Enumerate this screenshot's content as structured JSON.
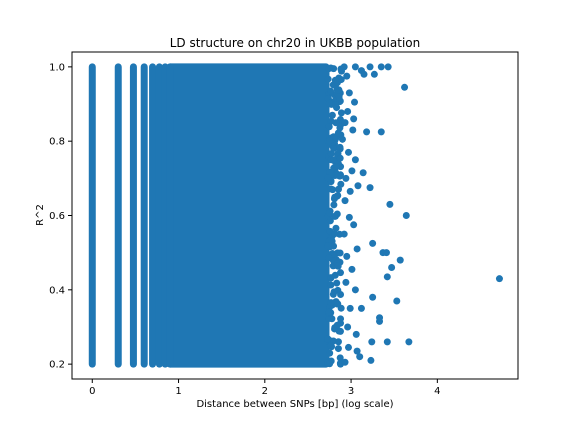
{
  "chart_data": {
    "type": "scatter",
    "title": "LD structure on chr20 in UKBB population",
    "xlabel": "Distance between SNPs [bp] (log scale)",
    "ylabel": "R^2",
    "xlim": [
      -0.235,
      4.935
    ],
    "ylim": [
      0.16,
      1.04
    ],
    "xticks": [
      0,
      1,
      2,
      3,
      4
    ],
    "yticks": [
      0.2,
      0.4,
      0.6,
      0.8,
      1.0
    ],
    "xtick_labels": [
      "0",
      "1",
      "2",
      "3",
      "4"
    ],
    "ytick_labels": [
      "0.2",
      "0.4",
      "0.6",
      "0.8",
      "1.0"
    ],
    "grid": false,
    "marker_color": "#1f77b4",
    "dense_region": {
      "x_range": [
        0.0,
        2.75
      ],
      "y_range": [
        0.2,
        1.0
      ],
      "description": "Solid mass of overlapping points; discrete log10 columns at log10(1..8)"
    },
    "columns_x": [
      0,
      0.301,
      0.477,
      0.602,
      0.699,
      0.778,
      0.845,
      0.903
    ],
    "points": [
      {
        "x": 2.92,
        "y": 1.0
      },
      {
        "x": 3.05,
        "y": 1.0
      },
      {
        "x": 3.12,
        "y": 0.99
      },
      {
        "x": 3.22,
        "y": 1.0
      },
      {
        "x": 3.27,
        "y": 0.98
      },
      {
        "x": 3.35,
        "y": 1.0
      },
      {
        "x": 3.43,
        "y": 1.0
      },
      {
        "x": 3.15,
        "y": 0.98
      },
      {
        "x": 2.95,
        "y": 0.975
      },
      {
        "x": 3.62,
        "y": 0.945
      },
      {
        "x": 2.98,
        "y": 0.93
      },
      {
        "x": 3.04,
        "y": 0.905
      },
      {
        "x": 2.96,
        "y": 0.88
      },
      {
        "x": 3.03,
        "y": 0.86
      },
      {
        "x": 2.93,
        "y": 0.85
      },
      {
        "x": 3.02,
        "y": 0.83
      },
      {
        "x": 3.18,
        "y": 0.825
      },
      {
        "x": 3.35,
        "y": 0.825
      },
      {
        "x": 2.9,
        "y": 0.805
      },
      {
        "x": 2.97,
        "y": 0.77
      },
      {
        "x": 3.05,
        "y": 0.75
      },
      {
        "x": 3.01,
        "y": 0.72
      },
      {
        "x": 3.14,
        "y": 0.715
      },
      {
        "x": 2.94,
        "y": 0.7
      },
      {
        "x": 3.08,
        "y": 0.68
      },
      {
        "x": 3.22,
        "y": 0.675
      },
      {
        "x": 2.99,
        "y": 0.665
      },
      {
        "x": 3.45,
        "y": 0.63
      },
      {
        "x": 2.93,
        "y": 0.64
      },
      {
        "x": 3.64,
        "y": 0.6
      },
      {
        "x": 2.98,
        "y": 0.595
      },
      {
        "x": 3.03,
        "y": 0.575
      },
      {
        "x": 2.92,
        "y": 0.55
      },
      {
        "x": 3.07,
        "y": 0.51
      },
      {
        "x": 3.25,
        "y": 0.525
      },
      {
        "x": 3.37,
        "y": 0.5
      },
      {
        "x": 3.41,
        "y": 0.5
      },
      {
        "x": 2.95,
        "y": 0.49
      },
      {
        "x": 3.57,
        "y": 0.48
      },
      {
        "x": 3.47,
        "y": 0.46
      },
      {
        "x": 3.01,
        "y": 0.455
      },
      {
        "x": 3.42,
        "y": 0.435
      },
      {
        "x": 4.72,
        "y": 0.43
      },
      {
        "x": 2.94,
        "y": 0.42
      },
      {
        "x": 3.05,
        "y": 0.4
      },
      {
        "x": 3.25,
        "y": 0.38
      },
      {
        "x": 3.53,
        "y": 0.37
      },
      {
        "x": 2.99,
        "y": 0.35
      },
      {
        "x": 3.12,
        "y": 0.35
      },
      {
        "x": 3.33,
        "y": 0.325
      },
      {
        "x": 3.33,
        "y": 0.315
      },
      {
        "x": 2.96,
        "y": 0.3
      },
      {
        "x": 3.06,
        "y": 0.28
      },
      {
        "x": 3.24,
        "y": 0.26
      },
      {
        "x": 3.42,
        "y": 0.26
      },
      {
        "x": 3.67,
        "y": 0.26
      },
      {
        "x": 2.97,
        "y": 0.245
      },
      {
        "x": 3.07,
        "y": 0.235
      },
      {
        "x": 3.1,
        "y": 0.22
      },
      {
        "x": 3.23,
        "y": 0.21
      },
      {
        "x": 2.93,
        "y": 0.205
      }
    ]
  }
}
